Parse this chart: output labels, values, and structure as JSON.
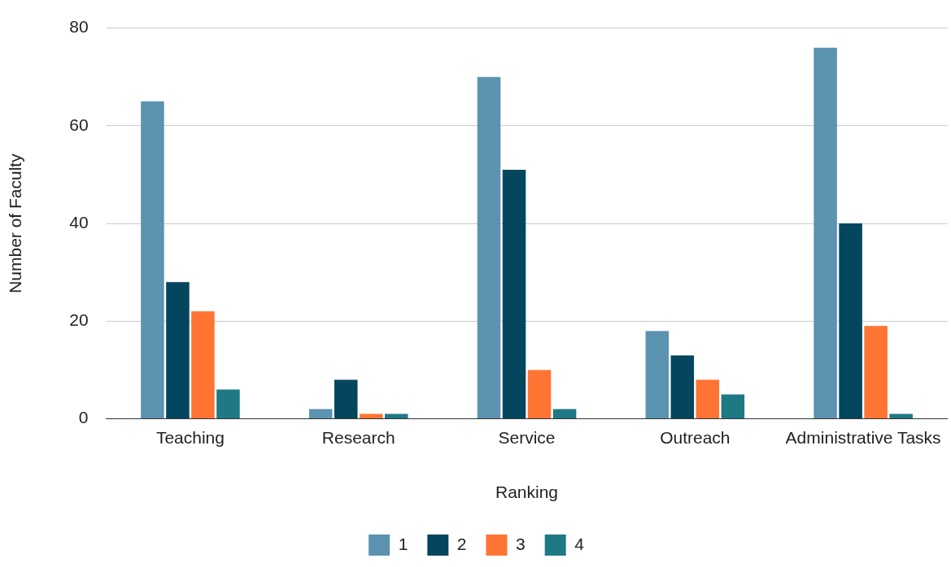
{
  "chart_data": {
    "type": "bar",
    "xlabel": "Ranking",
    "ylabel": "Number of Faculty",
    "categories": [
      "Teaching",
      "Research",
      "Service",
      "Outreach",
      "Administrative Tasks"
    ],
    "series": [
      {
        "name": "1",
        "color": "#5b93b1",
        "values": [
          65,
          2,
          70,
          18,
          76
        ]
      },
      {
        "name": "2",
        "color": "#05465f",
        "values": [
          28,
          8,
          51,
          13,
          40
        ]
      },
      {
        "name": "3",
        "color": "#ff7433",
        "values": [
          22,
          1,
          10,
          8,
          19
        ]
      },
      {
        "name": "4",
        "color": "#1f7985",
        "values": [
          6,
          1,
          2,
          5,
          1
        ]
      }
    ],
    "ylim": [
      0,
      80
    ],
    "yticks": [
      0,
      20,
      40,
      60,
      80
    ],
    "grid": "y",
    "legend": "bottom"
  }
}
